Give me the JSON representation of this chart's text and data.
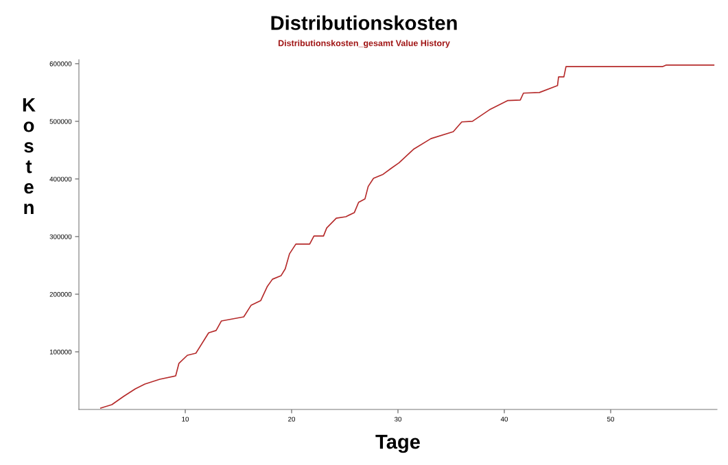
{
  "chart_data": {
    "type": "line",
    "title": "Distributionskosten",
    "subtitle": "Distributionskosten_gesamt Value History",
    "xlabel": "Tage",
    "ylabel": "Kosten",
    "x": [
      2.05,
      3.1,
      4.2,
      5.3,
      6.2,
      7.6,
      9.1,
      9.4,
      10.2,
      11.0,
      12.2,
      12.9,
      13.4,
      15.5,
      16.2,
      17.1,
      17.7,
      18.2,
      19.0,
      19.4,
      19.8,
      20.4,
      21.7,
      22.1,
      23.0,
      23.3,
      24.2,
      25.1,
      25.9,
      26.3,
      26.9,
      27.2,
      27.7,
      28.6,
      29.4,
      30.1,
      31.5,
      33.1,
      35.2,
      36.0,
      37.0,
      38.6,
      40.3,
      41.5,
      41.8,
      43.3,
      45.0,
      45.1,
      45.6,
      45.8,
      54.9,
      55.2,
      59.7
    ],
    "series": [
      {
        "color": "#b52a2a",
        "values": [
          2400,
          8300,
          22600,
          35700,
          44000,
          52400,
          58300,
          79800,
          94000,
          97600,
          133000,
          137000,
          153600,
          160700,
          181000,
          189000,
          213000,
          226000,
          232000,
          244000,
          270000,
          287000,
          287000,
          301000,
          301000,
          315000,
          332000,
          334500,
          341700,
          359500,
          365500,
          387000,
          401000,
          408000,
          419000,
          428000,
          452000,
          470000,
          482000,
          499000,
          500000,
          520000,
          536000,
          537000,
          549000,
          550000,
          562000,
          577000,
          577000,
          595000,
          595000,
          597600,
          597600
        ]
      }
    ],
    "xlim": [
      0,
      60
    ],
    "xticks": [
      10,
      20,
      30,
      40,
      50
    ],
    "ylim": [
      0,
      607000
    ],
    "yticks": [
      100000,
      200000,
      300000,
      400000,
      500000,
      600000
    ],
    "grid": false,
    "legend": false,
    "marker": "none",
    "line_style": "solid"
  }
}
